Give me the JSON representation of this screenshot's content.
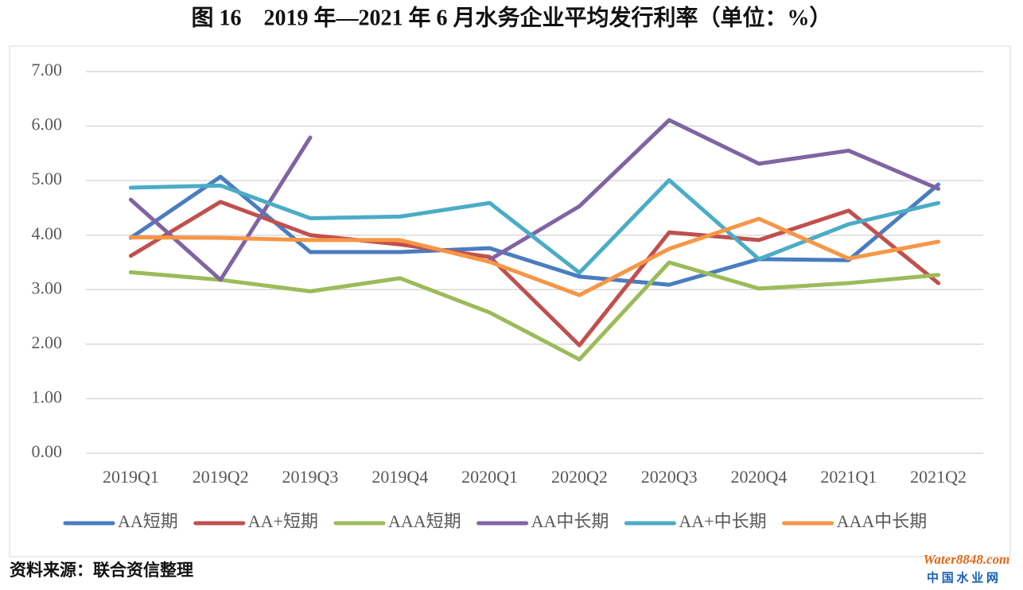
{
  "chart_data": {
    "type": "line",
    "title": "图 16　2019 年—2021 年 6 月水务企业平均发行利率（单位：%）",
    "source": "资料来源：联合资信整理",
    "watermark": "Water8848.com",
    "watermark_subtitle": "中 国 水 业 网",
    "categories": [
      "2019Q1",
      "2019Q2",
      "2019Q3",
      "2019Q4",
      "2020Q1",
      "2020Q2",
      "2020Q3",
      "2020Q4",
      "2021Q1",
      "2021Q2"
    ],
    "series": [
      {
        "name": "AA短期",
        "color": "#4a7cc0",
        "values": [
          3.95,
          5.07,
          3.69,
          3.69,
          3.76,
          3.24,
          3.09,
          3.56,
          3.54,
          4.93
        ]
      },
      {
        "name": "AA+短期",
        "color": "#c0504d",
        "values": [
          3.62,
          4.61,
          4.0,
          3.83,
          3.6,
          1.98,
          4.05,
          3.91,
          4.45,
          3.12
        ]
      },
      {
        "name": "AAA短期",
        "color": "#9bbb59",
        "values": [
          3.32,
          3.18,
          2.97,
          3.21,
          2.58,
          1.72,
          3.5,
          3.02,
          3.12,
          3.27
        ]
      },
      {
        "name": "AA中长期",
        "color": "#8064a2",
        "values": [
          4.65,
          3.18,
          5.79,
          null,
          3.55,
          4.53,
          6.11,
          5.31,
          5.55,
          4.85
        ]
      },
      {
        "name": "AA+中长期",
        "color": "#4bacc6",
        "values": [
          4.87,
          4.91,
          4.31,
          4.34,
          4.59,
          3.31,
          5.01,
          3.56,
          4.2,
          4.59
        ]
      },
      {
        "name": "AAA中长期",
        "color": "#f79646",
        "values": [
          3.96,
          3.95,
          3.91,
          3.91,
          3.51,
          2.9,
          3.75,
          4.3,
          3.57,
          3.88
        ]
      }
    ],
    "ylim": [
      0,
      7
    ],
    "yticks": [
      {
        "value": 0,
        "label": "0.00"
      },
      {
        "value": 1,
        "label": "1.00"
      },
      {
        "value": 2,
        "label": "2.00"
      },
      {
        "value": 3,
        "label": "3.00"
      },
      {
        "value": 4,
        "label": "4.00"
      },
      {
        "value": 5,
        "label": "5.00"
      },
      {
        "value": 6,
        "label": "6.00"
      },
      {
        "value": 7,
        "label": "7.00"
      }
    ],
    "grid": true,
    "legend": "bottom"
  }
}
